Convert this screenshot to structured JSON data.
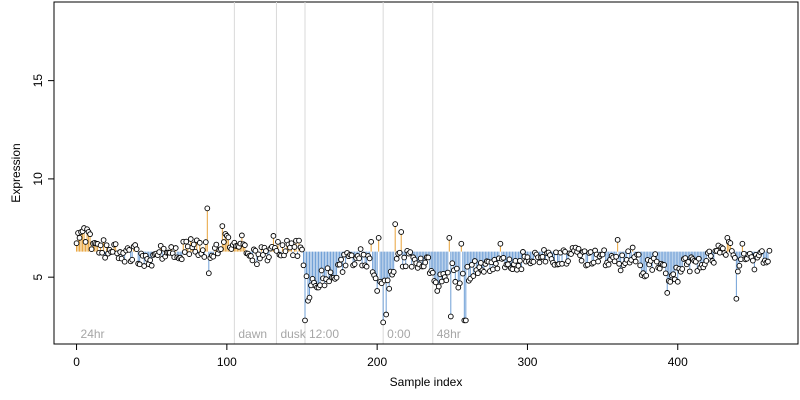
{
  "chart_data": {
    "type": "scatter",
    "xlabel": "Sample index",
    "ylabel": "Expression",
    "xlim": [
      -15,
      480
    ],
    "ylim": [
      1.6,
      19.0
    ],
    "x_ticks": [
      0,
      100,
      200,
      300,
      400
    ],
    "y_ticks": [
      5,
      10,
      15
    ],
    "baseline": 6.3,
    "colors": {
      "above": "#e8a33a",
      "below": "#6f9fd6",
      "point_stroke": "#000000",
      "point_fill": "#ffffff",
      "divider": "#d9d9d9",
      "phase_label": "#a6a6a6"
    },
    "phases": [
      {
        "label": "24hr",
        "x": 0
      },
      {
        "label": "dawn",
        "x": 105
      },
      {
        "label": "dusk",
        "x": 133
      },
      {
        "label": "12:00",
        "x": 152
      },
      {
        "label": "0:00",
        "x": 204
      },
      {
        "label": "48hr",
        "x": 237
      }
    ],
    "dividers": [
      105,
      133,
      152,
      204,
      237
    ],
    "anchors": [
      [
        0,
        6.7
      ],
      [
        5,
        7.2
      ],
      [
        10,
        6.7
      ],
      [
        20,
        6.4
      ],
      [
        30,
        6.2
      ],
      [
        40,
        6.2
      ],
      [
        48,
        5.6
      ],
      [
        55,
        6.4
      ],
      [
        65,
        6.1
      ],
      [
        75,
        6.6
      ],
      [
        85,
        6.4
      ],
      [
        95,
        6.3
      ],
      [
        100,
        6.8
      ],
      [
        110,
        6.7
      ],
      [
        120,
        6.1
      ],
      [
        130,
        6.3
      ],
      [
        140,
        6.5
      ],
      [
        148,
        6.5
      ],
      [
        152,
        5.6
      ],
      [
        155,
        4.3
      ],
      [
        160,
        4.9
      ],
      [
        170,
        5.1
      ],
      [
        180,
        5.9
      ],
      [
        190,
        6.0
      ],
      [
        197,
        5.5
      ],
      [
        203,
        4.6
      ],
      [
        207,
        4.5
      ],
      [
        212,
        5.7
      ],
      [
        220,
        6.0
      ],
      [
        228,
        5.8
      ],
      [
        235,
        5.6
      ],
      [
        240,
        4.8
      ],
      [
        245,
        4.9
      ],
      [
        250,
        5.5
      ],
      [
        255,
        4.7
      ],
      [
        260,
        5.2
      ],
      [
        270,
        5.6
      ],
      [
        280,
        5.7
      ],
      [
        290,
        5.6
      ],
      [
        300,
        6.0
      ],
      [
        310,
        6.1
      ],
      [
        320,
        6.0
      ],
      [
        330,
        6.1
      ],
      [
        340,
        5.9
      ],
      [
        350,
        6.0
      ],
      [
        360,
        5.7
      ],
      [
        370,
        6.1
      ],
      [
        378,
        5.3
      ],
      [
        385,
        6.0
      ],
      [
        392,
        5.2
      ],
      [
        398,
        5.0
      ],
      [
        405,
        5.6
      ],
      [
        415,
        5.8
      ],
      [
        425,
        6.2
      ],
      [
        435,
        6.6
      ],
      [
        440,
        5.4
      ],
      [
        443,
        6.2
      ],
      [
        450,
        5.8
      ],
      [
        460,
        6.1
      ]
    ],
    "spikes": [
      [
        2,
        7.0
      ],
      [
        3,
        7.3
      ],
      [
        5,
        7.5
      ],
      [
        87,
        8.5
      ],
      [
        88,
        5.2
      ],
      [
        97,
        7.6
      ],
      [
        99,
        7.2
      ],
      [
        131,
        7.1
      ],
      [
        152,
        2.8
      ],
      [
        154,
        3.8
      ],
      [
        196,
        6.8
      ],
      [
        200,
        4.3
      ],
      [
        201,
        7.0
      ],
      [
        204,
        2.7
      ],
      [
        206,
        3.1
      ],
      [
        212,
        7.7
      ],
      [
        216,
        7.3
      ],
      [
        240,
        4.3
      ],
      [
        248,
        7.0
      ],
      [
        249,
        3.0
      ],
      [
        256,
        6.7
      ],
      [
        258,
        2.8
      ],
      [
        259,
        2.8
      ],
      [
        282,
        6.7
      ],
      [
        360,
        6.9
      ],
      [
        393,
        4.2
      ],
      [
        433,
        7.0
      ],
      [
        439,
        3.9
      ],
      [
        443,
        6.7
      ]
    ],
    "n_points": 462,
    "seed": 20240601
  }
}
